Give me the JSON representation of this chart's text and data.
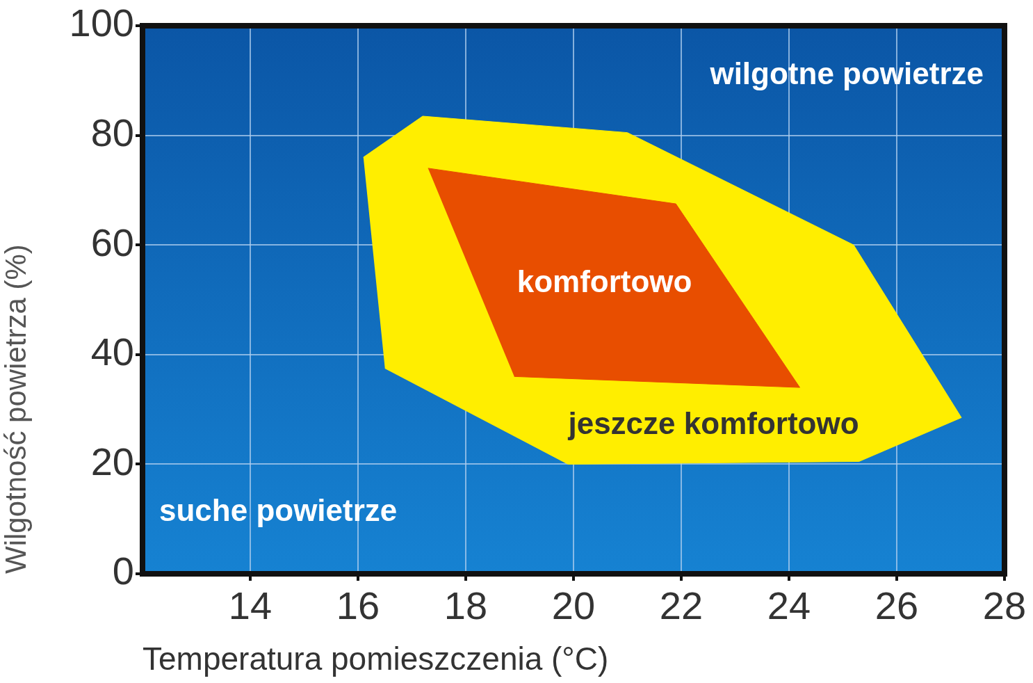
{
  "chart_data": {
    "type": "area",
    "xlabel": "Temperatura pomieszczenia (°C)",
    "ylabel": "Wilgotność powietrza (%)",
    "xlim": [
      12,
      28
    ],
    "xticks": [
      14,
      16,
      18,
      20,
      22,
      24,
      26,
      28
    ],
    "ylim": [
      0,
      100
    ],
    "yticks": [
      0,
      20,
      40,
      60,
      80,
      100
    ],
    "grid": true,
    "series": [
      {
        "name": "jeszcze komfortowo",
        "color": "#ffee00",
        "x": [
          16.1,
          17.2,
          21.0,
          25.2,
          27.2,
          25.3,
          19.9,
          16.5
        ],
        "values": [
          76,
          83.5,
          80.5,
          60,
          28.5,
          20.5,
          20,
          37.5
        ]
      },
      {
        "name": "komfortowo",
        "color": "#e84e00",
        "x": [
          17.3,
          21.9,
          24.2,
          18.9
        ],
        "values": [
          74,
          67.5,
          34,
          36
        ]
      }
    ],
    "annotations": [
      "wilgotne powietrze",
      "suche powietrze"
    ]
  }
}
